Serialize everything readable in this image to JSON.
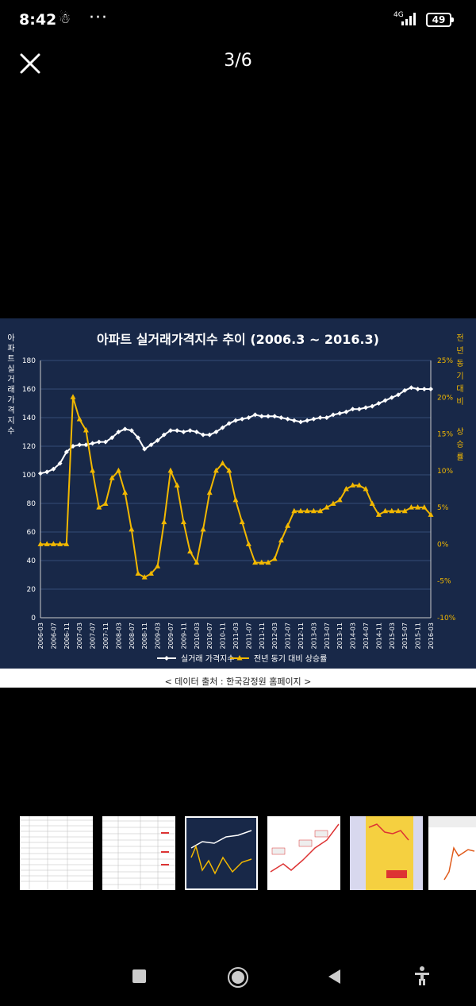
{
  "status_bar": {
    "time": "8:42",
    "network": "4G",
    "battery": "49"
  },
  "viewer": {
    "counter": "3/6",
    "caption": "< 데이터 출처 : 한국감정원 홈페이지 >"
  },
  "icons": {
    "close": "close-icon",
    "home": "home-circle-icon",
    "recents": "recents-square-icon",
    "back": "back-triangle-icon",
    "accessibility": "accessibility-icon"
  },
  "colors": {
    "chart_background": "#182848",
    "index_line": "#ffffff",
    "rate_line": "#f2b800",
    "grid": "#3d5a86"
  },
  "chart_data": {
    "type": "line",
    "title": "아파트 실거래가격지수 추이 (2006.3 ~ 2016.3)",
    "y_left_label": "아파트실거래가격지수",
    "y_right_label": "전년동기대비 상승률",
    "y_left_ticks": [
      "0",
      "20",
      "40",
      "60",
      "80",
      "100",
      "120",
      "140",
      "160",
      "180"
    ],
    "y_right_ticks": [
      "-10%",
      "-5%",
      "0%",
      "5%",
      "10%",
      "15%",
      "20%",
      "25%"
    ],
    "ylim_left": [
      0,
      180
    ],
    "ylim_right": [
      -10,
      25
    ],
    "x_ticks": [
      "2006-03",
      "2006-07",
      "2006-11",
      "2007-03",
      "2007-07",
      "2007-11",
      "2008-03",
      "2008-07",
      "2008-11",
      "2009-03",
      "2009-07",
      "2009-11",
      "2010-03",
      "2010-07",
      "2010-11",
      "2011-03",
      "2011-07",
      "2011-11",
      "2012-03",
      "2012-07",
      "2012-11",
      "2013-03",
      "2013-07",
      "2013-11",
      "2014-03",
      "2014-07",
      "2014-11",
      "2015-03",
      "2015-07",
      "2015-11",
      "2016-03"
    ],
    "grid": "horizontal",
    "legend_position": "bottom",
    "series": [
      {
        "name": "실거래 가격지수",
        "axis": "left",
        "color": "#ffffff",
        "marker": "diamond",
        "x": [
          "2006-03",
          "2006-05",
          "2006-07",
          "2006-09",
          "2006-11",
          "2007-01",
          "2007-03",
          "2007-05",
          "2007-07",
          "2007-09",
          "2007-11",
          "2008-01",
          "2008-03",
          "2008-05",
          "2008-07",
          "2008-09",
          "2008-11",
          "2009-01",
          "2009-03",
          "2009-05",
          "2009-07",
          "2009-09",
          "2009-11",
          "2010-01",
          "2010-03",
          "2010-05",
          "2010-07",
          "2010-09",
          "2010-11",
          "2011-01",
          "2011-03",
          "2011-05",
          "2011-07",
          "2011-09",
          "2011-11",
          "2012-01",
          "2012-03",
          "2012-05",
          "2012-07",
          "2012-09",
          "2012-11",
          "2013-01",
          "2013-03",
          "2013-05",
          "2013-07",
          "2013-09",
          "2013-11",
          "2014-01",
          "2014-03",
          "2014-05",
          "2014-07",
          "2014-09",
          "2014-11",
          "2015-01",
          "2015-03",
          "2015-05",
          "2015-07",
          "2015-09",
          "2015-11",
          "2016-01",
          "2016-03"
        ],
        "values": [
          101,
          102,
          104,
          108,
          116,
          120,
          121,
          121,
          122,
          123,
          123,
          126,
          130,
          132,
          131,
          126,
          118,
          121,
          124,
          128,
          131,
          131,
          130,
          131,
          130,
          128,
          128,
          130,
          133,
          136,
          138,
          139,
          140,
          142,
          141,
          141,
          141,
          140,
          139,
          138,
          137,
          138,
          139,
          140,
          140,
          142,
          143,
          144,
          146,
          146,
          147,
          148,
          150,
          152,
          154,
          156,
          159,
          161,
          160,
          160,
          160
        ]
      },
      {
        "name": "전년 동기 대비 상승률",
        "axis": "right",
        "color": "#f2b800",
        "marker": "triangle",
        "x": [
          "2006-03",
          "2006-05",
          "2006-07",
          "2006-09",
          "2006-11",
          "2007-01",
          "2007-03",
          "2007-05",
          "2007-07",
          "2007-09",
          "2007-11",
          "2008-01",
          "2008-03",
          "2008-05",
          "2008-07",
          "2008-09",
          "2008-11",
          "2009-01",
          "2009-03",
          "2009-05",
          "2009-07",
          "2009-09",
          "2009-11",
          "2010-01",
          "2010-03",
          "2010-05",
          "2010-07",
          "2010-09",
          "2010-11",
          "2011-01",
          "2011-03",
          "2011-05",
          "2011-07",
          "2011-09",
          "2011-11",
          "2012-01",
          "2012-03",
          "2012-05",
          "2012-07",
          "2012-09",
          "2012-11",
          "2013-01",
          "2013-03",
          "2013-05",
          "2013-07",
          "2013-09",
          "2013-11",
          "2014-01",
          "2014-03",
          "2014-05",
          "2014-07",
          "2014-09",
          "2014-11",
          "2015-01",
          "2015-03",
          "2015-05",
          "2015-07",
          "2015-09",
          "2015-11",
          "2016-01",
          "2016-03"
        ],
        "values": [
          0,
          0,
          0,
          0,
          0,
          20.0,
          17.0,
          15.5,
          10.0,
          5.0,
          5.5,
          9.0,
          10.0,
          7.0,
          2.0,
          -4.0,
          -4.5,
          -4.0,
          -3.0,
          3.0,
          10.0,
          8.0,
          3.0,
          -1.0,
          -2.5,
          2.0,
          7.0,
          10.0,
          11.0,
          10.0,
          6.0,
          3.0,
          0,
          -2.5,
          -2.5,
          -2.5,
          -2.0,
          0.5,
          2.5,
          4.5,
          4.5,
          4.5,
          4.5,
          4.5,
          5.0,
          5.5,
          6.0,
          7.5,
          8.0,
          8.0,
          7.5,
          5.5,
          4.0,
          4.5,
          4.5,
          4.5,
          4.5,
          5.0,
          5.0,
          5.0,
          4.0
        ]
      }
    ]
  }
}
